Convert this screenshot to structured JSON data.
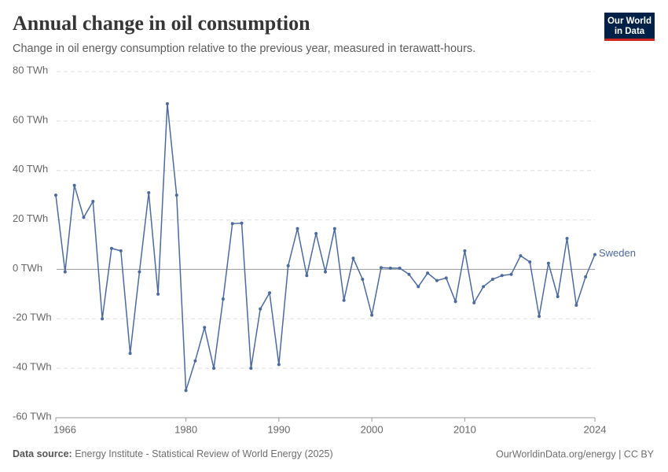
{
  "chart_data": {
    "type": "line",
    "title": "Annual change in oil consumption",
    "subtitle": "Change in oil energy consumption relative to the previous year, measured in terawatt-hours.",
    "logo": [
      "Our World",
      "in Data"
    ],
    "source_label": "Data source:",
    "source": "Energy Institute - Statistical Review of World Energy (2025)",
    "footer_right": "OurWorldinData.org/energy | CC BY",
    "x": [
      1966,
      1967,
      1968,
      1969,
      1970,
      1971,
      1972,
      1973,
      1974,
      1975,
      1976,
      1977,
      1978,
      1979,
      1980,
      1981,
      1982,
      1983,
      1984,
      1985,
      1986,
      1987,
      1988,
      1989,
      1990,
      1991,
      1992,
      1993,
      1994,
      1995,
      1996,
      1997,
      1998,
      1999,
      2000,
      2001,
      2002,
      2003,
      2004,
      2005,
      2006,
      2007,
      2008,
      2009,
      2010,
      2011,
      2012,
      2013,
      2014,
      2015,
      2016,
      2017,
      2018,
      2019,
      2020,
      2021,
      2022,
      2023,
      2024
    ],
    "series": [
      {
        "name": "Sweden",
        "color": "#4c6a9c",
        "values": [
          30,
          -1,
          34,
          21,
          27.5,
          -20,
          8.5,
          7.5,
          -34,
          -1,
          31,
          -10,
          67,
          30,
          -49,
          -37,
          -23.5,
          -40,
          -12,
          18.5,
          18.7,
          -40,
          -16,
          -9.5,
          -38.5,
          1.5,
          16.5,
          -2.5,
          14.5,
          -1,
          16.5,
          -12.5,
          4.5,
          -4,
          -18.5,
          0.7,
          0.5,
          0.5,
          -2,
          -7,
          -1.5,
          -4.5,
          -3.5,
          -13,
          7.5,
          -13.5,
          -7,
          -4,
          -2.5,
          -2,
          5.5,
          3,
          -19,
          2.5,
          -11,
          12.5,
          -14.5,
          -3,
          6
        ]
      }
    ],
    "xlim": [
      1966,
      2024
    ],
    "xticks": [
      1966,
      1980,
      1990,
      2000,
      2010,
      2024
    ],
    "ylim": [
      -60,
      80
    ],
    "yticks": [
      {
        "value": -60,
        "label": "-60 TWh"
      },
      {
        "value": -40,
        "label": "-40 TWh"
      },
      {
        "value": -20,
        "label": "-20 TWh"
      },
      {
        "value": 0,
        "label": "0 TWh"
      },
      {
        "value": 20,
        "label": "20 TWh"
      },
      {
        "value": 40,
        "label": "40 TWh"
      },
      {
        "value": 60,
        "label": "60 TWh"
      },
      {
        "value": 80,
        "label": "80 TWh"
      }
    ],
    "grid": true
  }
}
